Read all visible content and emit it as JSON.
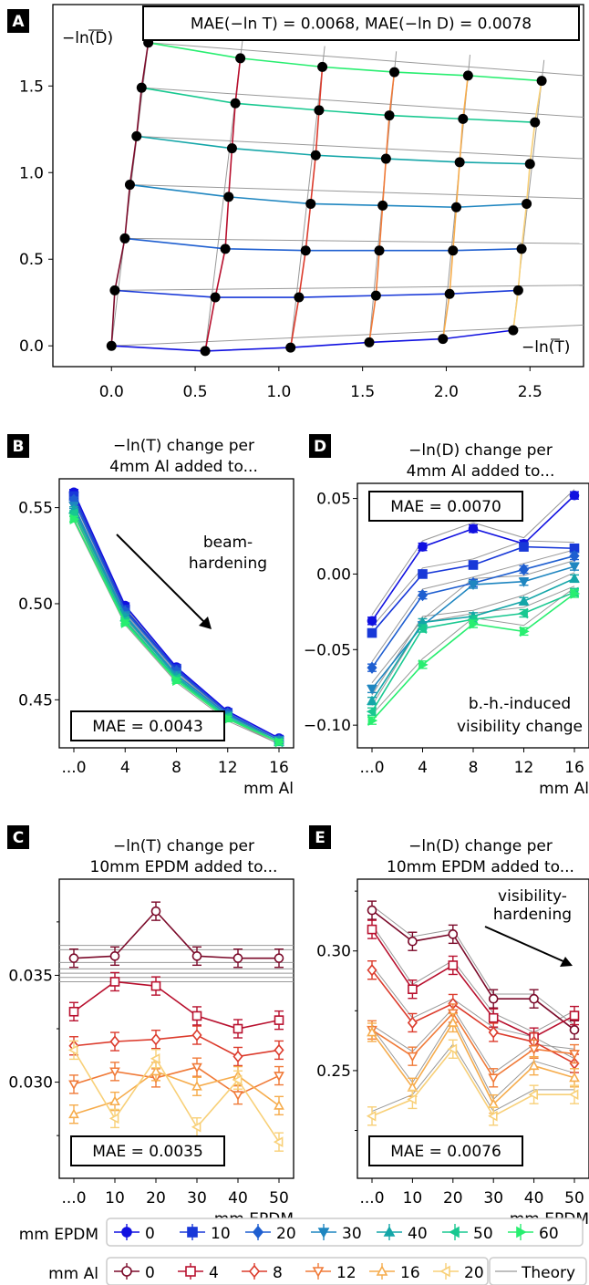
{
  "panels": {
    "A": {
      "letter": "A",
      "mae_text": "MAE(−ln T) = 0.0068, MAE(−ln D) = 0.0078",
      "ylabel": "−ln(D)",
      "xlabel": "−ln(T)",
      "xticks": [
        "0.0",
        "0.5",
        "1.0",
        "1.5",
        "2.0",
        "2.5"
      ],
      "yticks": [
        "0.0",
        "0.5",
        "1.0",
        "1.5"
      ]
    },
    "B": {
      "letter": "B",
      "title1": "−ln(T) change per",
      "title2": "4mm Al added to...",
      "annotation1": "beam-",
      "annotation2": "hardening",
      "mae_text": "MAE = 0.0043",
      "xlabel": "mm Al",
      "xticks": [
        "...0",
        "4",
        "8",
        "12",
        "16"
      ],
      "yticks": [
        "0.45",
        "0.50",
        "0.55"
      ]
    },
    "D": {
      "letter": "D",
      "title1": "−ln(D) change per",
      "title2": "4mm Al added to...",
      "annotation1": "b.-h.-induced",
      "annotation2": "visibility change",
      "mae_text": "MAE = 0.0070",
      "xlabel": "mm Al",
      "xticks": [
        "...0",
        "4",
        "8",
        "12",
        "16"
      ],
      "yticks": [
        "−0.10",
        "−0.05",
        "0.00",
        "0.05"
      ]
    },
    "C": {
      "letter": "C",
      "title1": "−ln(T) change per",
      "title2": "10mm EPDM added to...",
      "mae_text": "MAE = 0.0035",
      "xlabel": "mm EPDM",
      "xticks": [
        "...0",
        "10",
        "20",
        "30",
        "40",
        "50"
      ],
      "yticks": [
        "0.030",
        "0.035"
      ]
    },
    "E": {
      "letter": "E",
      "title1": "−ln(D) change per",
      "title2": "10mm EPDM added to...",
      "annotation1": "visibility-",
      "annotation2": "hardening",
      "mae_text": "MAE = 0.0076",
      "xlabel": "mm EPDM",
      "xticks": [
        "...0",
        "10",
        "20",
        "30",
        "40",
        "50"
      ],
      "yticks": [
        "0.25",
        "0.30"
      ]
    }
  },
  "legend": {
    "epdm_label": "mm EPDM",
    "al_label": "mm Al",
    "theory_label": "Theory",
    "epdm_items": [
      {
        "label": "0",
        "marker": "circle",
        "color": "#1010e0"
      },
      {
        "label": "10",
        "marker": "square",
        "color": "#1838d8"
      },
      {
        "label": "20",
        "marker": "diamond",
        "color": "#1f5fd0"
      },
      {
        "label": "30",
        "marker": "triangle-down",
        "color": "#1f86c0"
      },
      {
        "label": "40",
        "marker": "triangle-up",
        "color": "#14a6a8"
      },
      {
        "label": "50",
        "marker": "triangle-left",
        "color": "#18c890"
      },
      {
        "label": "60",
        "marker": "triangle-right",
        "color": "#28ee70"
      }
    ],
    "al_items": [
      {
        "label": "0",
        "marker": "circle",
        "color": "#7b0a2a"
      },
      {
        "label": "4",
        "marker": "square",
        "color": "#b8102e"
      },
      {
        "label": "8",
        "marker": "diamond",
        "color": "#dc3b2c"
      },
      {
        "label": "12",
        "marker": "triangle-down",
        "color": "#f07a38"
      },
      {
        "label": "16",
        "marker": "triangle-up",
        "color": "#f6ac4c"
      },
      {
        "label": "20",
        "marker": "triangle-left",
        "color": "#f8d078"
      }
    ]
  },
  "chart_data": [
    {
      "panel": "A",
      "type": "line",
      "xlabel": "−ln(T)",
      "ylabel": "−ln(D)",
      "xlim": [
        -0.35,
        2.82
      ],
      "ylim": [
        -0.12,
        1.97
      ],
      "grid_points_by_al": [
        [
          [
            0.0,
            0.0
          ],
          [
            0.02,
            0.32
          ],
          [
            0.08,
            0.62
          ],
          [
            0.11,
            0.93
          ],
          [
            0.15,
            1.21
          ],
          [
            0.18,
            1.49
          ],
          [
            0.22,
            1.75
          ]
        ],
        [
          [
            0.56,
            -0.03
          ],
          [
            0.62,
            0.28
          ],
          [
            0.68,
            0.56
          ],
          [
            0.7,
            0.86
          ],
          [
            0.72,
            1.14
          ],
          [
            0.74,
            1.4
          ],
          [
            0.77,
            1.66
          ]
        ],
        [
          [
            1.07,
            -0.01
          ],
          [
            1.12,
            0.28
          ],
          [
            1.16,
            0.55
          ],
          [
            1.19,
            0.82
          ],
          [
            1.22,
            1.1
          ],
          [
            1.24,
            1.36
          ],
          [
            1.26,
            1.61
          ]
        ],
        [
          [
            1.54,
            0.02
          ],
          [
            1.58,
            0.29
          ],
          [
            1.6,
            0.55
          ],
          [
            1.62,
            0.81
          ],
          [
            1.64,
            1.08
          ],
          [
            1.66,
            1.33
          ],
          [
            1.69,
            1.58
          ]
        ],
        [
          [
            1.98,
            0.04
          ],
          [
            2.02,
            0.3
          ],
          [
            2.04,
            0.55
          ],
          [
            2.06,
            0.8
          ],
          [
            2.08,
            1.06
          ],
          [
            2.1,
            1.31
          ],
          [
            2.13,
            1.56
          ]
        ],
        [
          [
            2.4,
            0.09
          ],
          [
            2.43,
            0.32
          ],
          [
            2.45,
            0.56
          ],
          [
            2.48,
            0.82
          ],
          [
            2.5,
            1.05
          ],
          [
            2.53,
            1.29
          ],
          [
            2.57,
            1.53
          ]
        ]
      ]
    },
    {
      "panel": "B",
      "type": "line",
      "xlabel": "mm Al",
      "categories": [
        "...0",
        "4",
        "8",
        "12",
        "16"
      ],
      "ylim": [
        0.425,
        0.565
      ],
      "series": [
        {
          "name": "0",
          "values": [
            0.558,
            0.499,
            0.467,
            0.444,
            0.43
          ]
        },
        {
          "name": "10",
          "values": [
            0.556,
            0.497,
            0.466,
            0.443,
            0.429
          ]
        },
        {
          "name": "20",
          "values": [
            0.554,
            0.496,
            0.465,
            0.443,
            0.429
          ]
        },
        {
          "name": "30",
          "values": [
            0.551,
            0.494,
            0.463,
            0.442,
            0.429
          ]
        },
        {
          "name": "40",
          "values": [
            0.549,
            0.493,
            0.462,
            0.441,
            0.428
          ]
        },
        {
          "name": "50",
          "values": [
            0.547,
            0.491,
            0.461,
            0.441,
            0.428
          ]
        },
        {
          "name": "60",
          "values": [
            0.544,
            0.49,
            0.46,
            0.44,
            0.428
          ]
        }
      ]
    },
    {
      "panel": "D",
      "type": "line",
      "xlabel": "mm Al",
      "categories": [
        "...0",
        "4",
        "8",
        "12",
        "16"
      ],
      "ylim": [
        -0.115,
        0.06
      ],
      "series": [
        {
          "name": "0",
          "values": [
            -0.031,
            0.018,
            0.03,
            0.02,
            0.052
          ]
        },
        {
          "name": "10",
          "values": [
            -0.039,
            0.0,
            0.006,
            0.018,
            0.017
          ]
        },
        {
          "name": "20",
          "values": [
            -0.062,
            -0.014,
            -0.006,
            0.003,
            0.012
          ]
        },
        {
          "name": "30",
          "values": [
            -0.076,
            -0.034,
            -0.007,
            -0.005,
            0.005
          ]
        },
        {
          "name": "40",
          "values": [
            -0.084,
            -0.032,
            -0.028,
            -0.018,
            -0.003
          ]
        },
        {
          "name": "50",
          "values": [
            -0.091,
            -0.036,
            -0.03,
            -0.026,
            -0.012
          ]
        },
        {
          "name": "60",
          "values": [
            -0.097,
            -0.06,
            -0.033,
            -0.038,
            -0.013
          ]
        }
      ]
    },
    {
      "panel": "C",
      "type": "line",
      "xlabel": "mm EPDM",
      "categories": [
        "...0",
        "10",
        "20",
        "30",
        "40",
        "50"
      ],
      "ylim": [
        0.0255,
        0.0395
      ],
      "series": [
        {
          "name": "0",
          "values": [
            0.0358,
            0.0359,
            0.038,
            0.0359,
            0.0358,
            0.0358
          ]
        },
        {
          "name": "4",
          "values": [
            0.0333,
            0.0347,
            0.0345,
            0.0331,
            0.0325,
            0.0329
          ]
        },
        {
          "name": "8",
          "values": [
            0.0317,
            0.0319,
            0.032,
            0.0322,
            0.0312,
            0.0315
          ]
        },
        {
          "name": "12",
          "values": [
            0.0299,
            0.0305,
            0.0302,
            0.0307,
            0.0294,
            0.0303
          ]
        },
        {
          "name": "16",
          "values": [
            0.0285,
            0.0291,
            0.0305,
            0.0298,
            0.0303,
            0.0289
          ]
        },
        {
          "name": "20",
          "values": [
            0.0315,
            0.0283,
            0.0311,
            0.0279,
            0.0301,
            0.0272
          ]
        }
      ]
    },
    {
      "panel": "E",
      "type": "line",
      "xlabel": "mm EPDM",
      "categories": [
        "...0",
        "10",
        "20",
        "30",
        "40",
        "50"
      ],
      "ylim": [
        0.205,
        0.33
      ],
      "series": [
        {
          "name": "0",
          "values": [
            0.317,
            0.304,
            0.307,
            0.28,
            0.28,
            0.267
          ]
        },
        {
          "name": "4",
          "values": [
            0.309,
            0.284,
            0.294,
            0.272,
            0.264,
            0.273
          ]
        },
        {
          "name": "8",
          "values": [
            0.292,
            0.27,
            0.278,
            0.266,
            0.262,
            0.253
          ]
        },
        {
          "name": "12",
          "values": [
            0.267,
            0.256,
            0.274,
            0.247,
            0.259,
            0.257
          ]
        },
        {
          "name": "16",
          "values": [
            0.266,
            0.243,
            0.27,
            0.236,
            0.252,
            0.247
          ]
        },
        {
          "name": "20",
          "values": [
            0.231,
            0.238,
            0.259,
            0.231,
            0.24,
            0.24
          ]
        }
      ]
    }
  ]
}
